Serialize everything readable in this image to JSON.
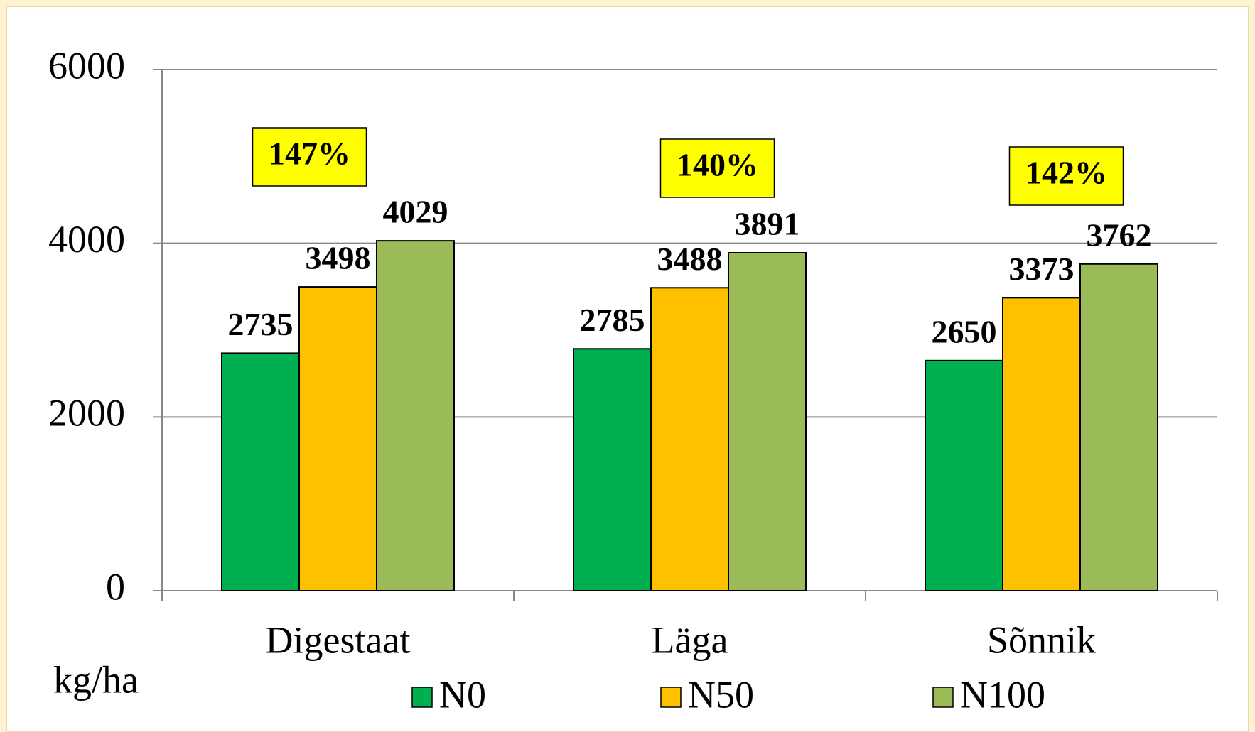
{
  "chart_data": {
    "type": "bar",
    "y_label": "kg/ha",
    "categories": [
      "Digestaat",
      "Läga",
      "Sõnnik"
    ],
    "series": [
      {
        "name": "N0",
        "color": "#00b050",
        "values": [
          2735,
          2785,
          2650
        ]
      },
      {
        "name": "N50",
        "color": "#ffc000",
        "values": [
          3498,
          3488,
          3373
        ]
      },
      {
        "name": "N100",
        "color": "#9bbb59",
        "values": [
          4029,
          3891,
          3762
        ]
      }
    ],
    "annotations": [
      "147%",
      "140%",
      "142%"
    ],
    "annotation_color": "#ffff00",
    "ylim": [
      0,
      6000
    ],
    "yticks": [
      0,
      2000,
      4000,
      6000
    ],
    "grid": true,
    "legend": "bottom"
  }
}
